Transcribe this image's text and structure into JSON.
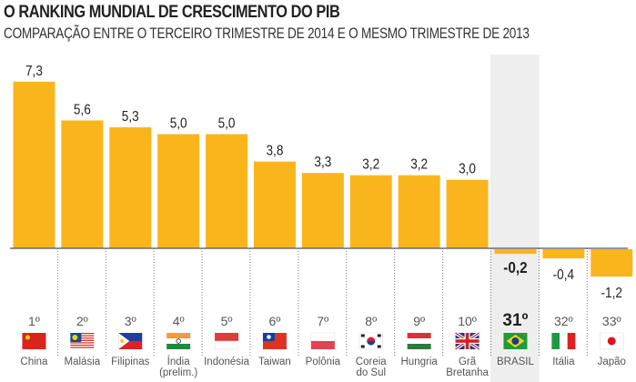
{
  "chart_data": {
    "type": "bar",
    "title": "O RANKING MUNDIAL DE CRESCIMENTO DO PIB",
    "subtitle": "COMPARAÇÃO ENTRE O TERCEIRO TRIMESTRE DE 2014 E O MESMO TRIMESTRE DE 2013",
    "categories": [
      "China",
      "Malásia",
      "Filipinas",
      "Índia (prelim.)",
      "Indonésia",
      "Taiwan",
      "Polônia",
      "Coreia do Sul",
      "Hungria",
      "Grã Bretanha",
      "BRASIL",
      "Itália",
      "Japão"
    ],
    "ranks": [
      "1º",
      "2º",
      "3º",
      "4º",
      "5º",
      "6º",
      "7º",
      "8º",
      "9º",
      "10º",
      "31º",
      "32º",
      "33º"
    ],
    "values": [
      7.3,
      5.6,
      5.3,
      5.0,
      5.0,
      3.8,
      3.3,
      3.2,
      3.2,
      3.0,
      -0.2,
      -0.4,
      -1.2
    ],
    "value_labels": [
      "7,3",
      "5,6",
      "5,3",
      "5,0",
      "5,0",
      "3,8",
      "3,3",
      "3,2",
      "3,2",
      "3,0",
      "-0,2",
      "-0,4",
      "-1,2"
    ],
    "flags": [
      "china-flag",
      "malaysia-flag",
      "philippines-flag",
      "india-flag",
      "indonesia-flag",
      "taiwan-flag",
      "poland-flag",
      "south-korea-flag",
      "hungary-flag",
      "uk-flag",
      "brazil-flag",
      "italy-flag",
      "japan-flag"
    ],
    "highlight": "BRASIL",
    "bar_color": "#fbb51c",
    "highlight_bg": "#eeeeee",
    "ylim": [
      -1.2,
      7.3
    ],
    "grid": false
  }
}
